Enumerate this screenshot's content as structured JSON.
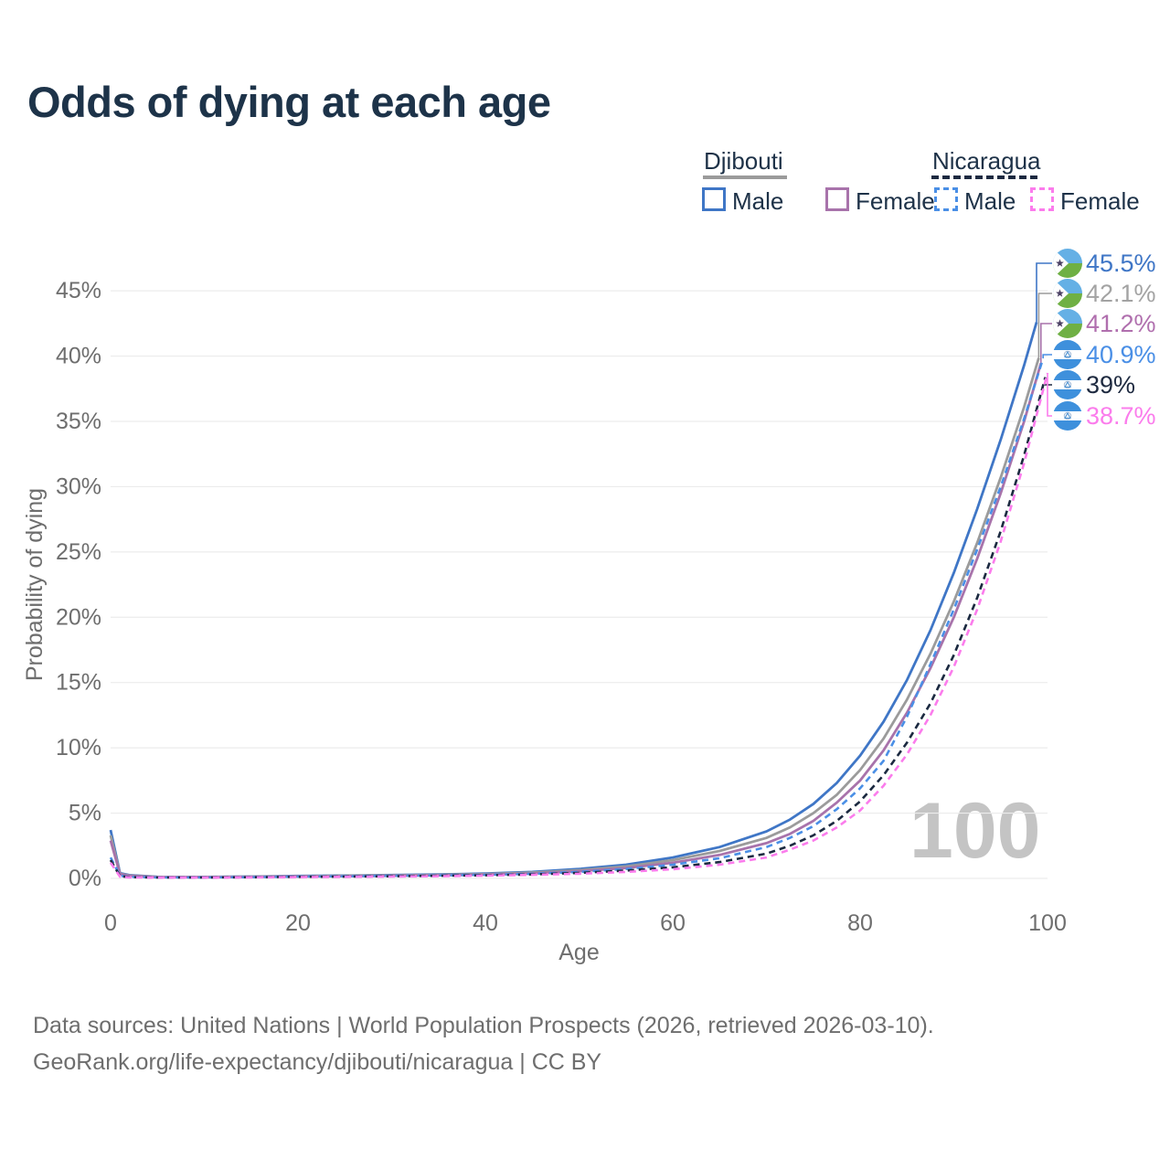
{
  "title": "Odds of dying at each age",
  "legend": {
    "groups": [
      {
        "country": "Djibouti",
        "items": [
          {
            "label": "Male"
          },
          {
            "label": "Female"
          }
        ]
      },
      {
        "country": "Nicaragua",
        "items": [
          {
            "label": "Male"
          },
          {
            "label": "Female"
          }
        ]
      }
    ]
  },
  "chart_data": {
    "type": "line",
    "title": "Odds of dying at each age",
    "xlabel": "Age",
    "ylabel": "Probability of dying",
    "xlim": [
      0,
      100
    ],
    "ylim_percent": [
      0,
      47
    ],
    "grid": "horizontal",
    "legend_position": "top-right",
    "age_annotation": "100",
    "x_ticks": [
      {
        "value": 0,
        "label": "0"
      },
      {
        "value": 20,
        "label": "20"
      },
      {
        "value": 40,
        "label": "40"
      },
      {
        "value": 60,
        "label": "60"
      },
      {
        "value": 80,
        "label": "80"
      },
      {
        "value": 100,
        "label": "100"
      }
    ],
    "y_ticks": [
      {
        "value": 0,
        "label": "0%"
      },
      {
        "value": 5,
        "label": "5%"
      },
      {
        "value": 10,
        "label": "10%"
      },
      {
        "value": 15,
        "label": "15%"
      },
      {
        "value": 20,
        "label": "20%"
      },
      {
        "value": 25,
        "label": "25%"
      },
      {
        "value": 30,
        "label": "30%"
      },
      {
        "value": 35,
        "label": "35%"
      },
      {
        "value": 40,
        "label": "40%"
      },
      {
        "value": 45,
        "label": "45%"
      }
    ],
    "x": [
      0,
      1,
      2,
      5,
      10,
      15,
      20,
      25,
      30,
      35,
      40,
      45,
      50,
      55,
      60,
      65,
      70,
      72.5,
      75,
      77.5,
      80,
      82.5,
      85,
      87.5,
      90,
      92.5,
      95,
      97.5,
      100
    ],
    "series": [
      {
        "id": "djibouti-male",
        "name": "Djibouti Male",
        "country": "Djibouti",
        "sex": "male",
        "style": "solid",
        "color": "#3f76c6",
        "label_color": "#3f76c6",
        "flag": "djibouti",
        "end_label": "45.5%",
        "values": [
          3.7,
          0.4,
          0.25,
          0.12,
          0.11,
          0.14,
          0.19,
          0.22,
          0.26,
          0.3,
          0.37,
          0.5,
          0.72,
          1.05,
          1.6,
          2.4,
          3.6,
          4.5,
          5.7,
          7.3,
          9.4,
          12.0,
          15.2,
          19.0,
          23.4,
          28.3,
          33.6,
          39.3,
          45.5
        ]
      },
      {
        "id": "djibouti-both",
        "name": "Djibouti Both sexes",
        "country": "Djibouti",
        "sex": "both",
        "style": "solid",
        "color": "#9b9b9b",
        "label_color": "#a3a3a3",
        "flag": "djibouti",
        "end_label": "42.1%",
        "values": [
          3.3,
          0.36,
          0.22,
          0.11,
          0.1,
          0.13,
          0.17,
          0.2,
          0.23,
          0.27,
          0.33,
          0.44,
          0.63,
          0.92,
          1.4,
          2.1,
          3.1,
          3.9,
          5.0,
          6.4,
          8.3,
          10.7,
          13.7,
          17.2,
          21.2,
          25.7,
          30.7,
          36.1,
          42.1
        ]
      },
      {
        "id": "djibouti-female",
        "name": "Djibouti Female",
        "country": "Djibouti",
        "sex": "female",
        "style": "solid",
        "color": "#a873ab",
        "label_color": "#b06fae",
        "flag": "djibouti",
        "end_label": "41.2%",
        "values": [
          2.9,
          0.32,
          0.2,
          0.1,
          0.09,
          0.11,
          0.15,
          0.17,
          0.2,
          0.24,
          0.29,
          0.38,
          0.55,
          0.8,
          1.2,
          1.8,
          2.7,
          3.4,
          4.4,
          5.8,
          7.5,
          9.8,
          12.7,
          16.1,
          20.0,
          24.5,
          29.5,
          35.0,
          41.2
        ]
      },
      {
        "id": "nicaragua-male",
        "name": "Nicaragua Male",
        "country": "Nicaragua",
        "sex": "male",
        "style": "dashed",
        "color": "#4a8fe6",
        "label_color": "#4a8fe6",
        "flag": "nicaragua",
        "end_label": "40.9%",
        "values": [
          1.6,
          0.2,
          0.12,
          0.08,
          0.08,
          0.1,
          0.14,
          0.17,
          0.2,
          0.23,
          0.28,
          0.36,
          0.5,
          0.72,
          1.05,
          1.55,
          2.4,
          3.1,
          4.0,
          5.3,
          6.9,
          9.0,
          12.4,
          16.4,
          20.6,
          25.2,
          30.0,
          35.2,
          40.9
        ]
      },
      {
        "id": "nicaragua-both",
        "name": "Nicaragua Both sexes",
        "country": "Nicaragua",
        "sex": "both",
        "style": "dashed",
        "color": "#1b2940",
        "label_color": "#1e2a40",
        "flag": "nicaragua",
        "end_label": "39%",
        "values": [
          1.4,
          0.17,
          0.1,
          0.07,
          0.07,
          0.09,
          0.12,
          0.14,
          0.17,
          0.2,
          0.24,
          0.31,
          0.42,
          0.6,
          0.85,
          1.25,
          1.9,
          2.5,
          3.3,
          4.4,
          5.9,
          7.9,
          10.4,
          13.4,
          17.1,
          21.5,
          26.6,
          32.4,
          39.0
        ]
      },
      {
        "id": "nicaragua-female",
        "name": "Nicaragua Female",
        "country": "Nicaragua",
        "sex": "female",
        "style": "dashed",
        "color": "#fb7cec",
        "label_color": "#fb7cec",
        "flag": "nicaragua",
        "end_label": "38.7%",
        "values": [
          1.2,
          0.13,
          0.08,
          0.06,
          0.06,
          0.08,
          0.1,
          0.12,
          0.14,
          0.17,
          0.21,
          0.27,
          0.36,
          0.5,
          0.7,
          1.05,
          1.6,
          2.2,
          2.9,
          3.9,
          5.2,
          7.1,
          9.5,
          12.5,
          16.2,
          20.6,
          25.8,
          31.8,
          38.7
        ]
      }
    ]
  },
  "footer": {
    "line1": "Data sources: United Nations | World Population Prospects (2026, retrieved 2026-03-10).",
    "line2": "GeoRank.org/life-expectancy/djibouti/nicaragua | CC BY"
  }
}
